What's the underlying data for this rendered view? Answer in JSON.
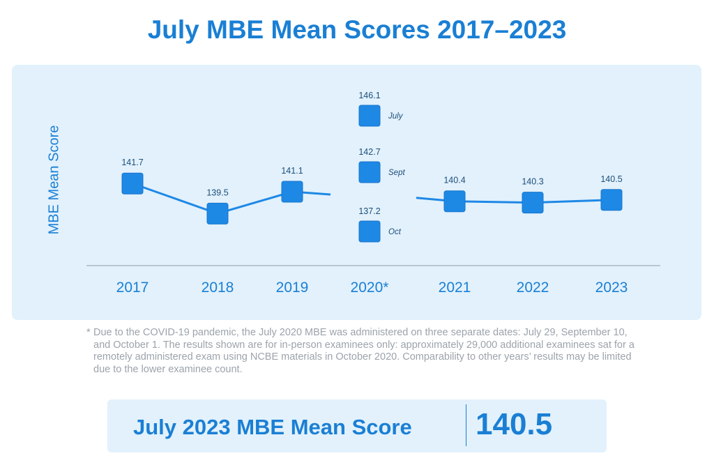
{
  "title": "July MBE Mean Scores 2017–2023",
  "chart_data": {
    "type": "line",
    "ylabel": "MBE Mean Score",
    "xlabel": "",
    "categories": [
      "2017",
      "2018",
      "2019",
      "2020*",
      "2021",
      "2022",
      "2023"
    ],
    "series": [
      {
        "values": [
          141.7,
          139.5,
          141.1,
          null,
          140.4,
          140.3,
          140.5
        ]
      }
    ],
    "special_2020": [
      {
        "label": "July",
        "value": 146.1
      },
      {
        "label": "Sept",
        "value": 142.7
      },
      {
        "label": "Oct",
        "value": 137.2
      }
    ],
    "marker_color": "#1e88e5",
    "line_color": "#1e88e5",
    "grid": false
  },
  "footnote": {
    "mark": "*",
    "text": "Due to the COVID-19 pandemic, the July 2020 MBE was administered on three separate dates: July 29, September 10, and October 1. The results shown are for in-person examinees only: approximately 29,000 additional examinees sat for a remotely administered exam using NCBE materials in October 2020. Comparability to other years’ results may be limited due to the lower examinee count."
  },
  "summary": {
    "label": "July 2023 MBE Mean Score",
    "value": "140.5"
  }
}
